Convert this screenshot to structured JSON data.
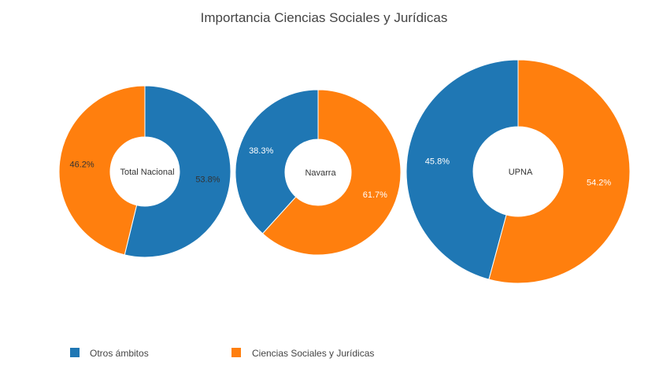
{
  "chart_data": {
    "type": "pie",
    "title": "Importancia Ciencias Sociales y Jurídicas",
    "series_names": [
      "Otros ámbitos",
      "Ciencias Sociales y Jurídicas"
    ],
    "colors": {
      "Otros ámbitos": "#1f77b4",
      "Ciencias Sociales y Jurídicas": "#ff7f0e"
    },
    "charts": [
      {
        "name": "Total Nacional",
        "values": {
          "Otros ámbitos": 53.8,
          "Ciencias Sociales y Jurídicas": 46.2
        },
        "labels": {
          "Otros ámbitos": "53.8%",
          "Ciencias Sociales y Jurídicas": "46.2%"
        }
      },
      {
        "name": "Navarra",
        "values": {
          "Otros ámbitos": 38.3,
          "Ciencias Sociales y Jurídicas": 61.7
        },
        "labels": {
          "Otros ámbitos": "38.3%",
          "Ciencias Sociales y Jurídicas": "61.7%"
        }
      },
      {
        "name": "UPNA",
        "values": {
          "Otros ámbitos": 45.8,
          "Ciencias Sociales y Jurídicas": 54.2
        },
        "labels": {
          "Otros ámbitos": "45.8%",
          "Ciencias Sociales y Jurídicas": "54.2%"
        }
      }
    ],
    "legend": {
      "placement": "bottom-left",
      "items": [
        "Otros ámbitos",
        "Ciencias Sociales y Jurídicas"
      ]
    }
  }
}
